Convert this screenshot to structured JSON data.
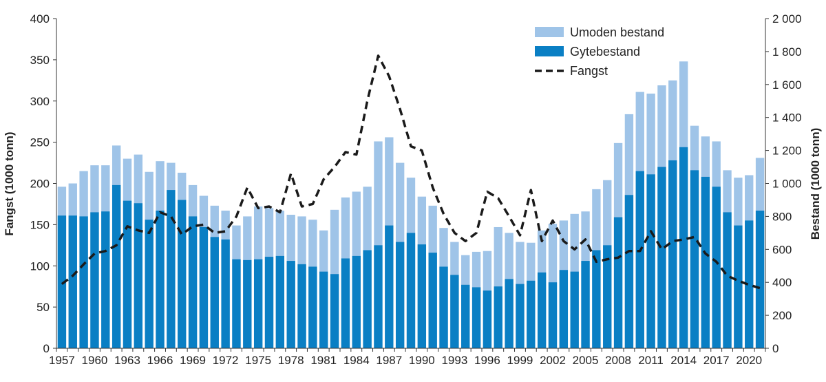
{
  "chart_data": {
    "type": "bar",
    "title": "",
    "xlabel": "",
    "ylabel_left": "Fangst (1000 tonn)",
    "ylabel_right": "Bestand (1000 tonn)",
    "ylim_left": [
      0,
      400
    ],
    "ylim_right": [
      0,
      2000
    ],
    "yticks_left": [
      "0",
      "50",
      "100",
      "150",
      "200",
      "250",
      "300",
      "350",
      "400"
    ],
    "yticks_right": [
      "0",
      "200",
      "400",
      "600",
      "800",
      "1 000",
      "1 200",
      "1 400",
      "1 600",
      "1 800",
      "2 000"
    ],
    "x": [
      1957,
      1958,
      1959,
      1960,
      1961,
      1962,
      1963,
      1964,
      1965,
      1966,
      1967,
      1968,
      1969,
      1970,
      1971,
      1972,
      1973,
      1974,
      1975,
      1976,
      1977,
      1978,
      1979,
      1980,
      1981,
      1982,
      1983,
      1984,
      1985,
      1986,
      1987,
      1988,
      1989,
      1990,
      1991,
      1992,
      1993,
      1994,
      1995,
      1996,
      1997,
      1998,
      1999,
      2000,
      2001,
      2002,
      2003,
      2004,
      2005,
      2006,
      2007,
      2008,
      2009,
      2010,
      2011,
      2012,
      2013,
      2014,
      2015,
      2016,
      2017,
      2018,
      2019,
      2020,
      2021
    ],
    "xtick_labels": [
      "1957",
      "1960",
      "1963",
      "1966",
      "1969",
      "1972",
      "1975",
      "1978",
      "1981",
      "1984",
      "1987",
      "1990",
      "1993",
      "1996",
      "1999",
      "2002",
      "2005",
      "2008",
      "2011",
      "2014",
      "2017",
      "2020"
    ],
    "legend_position": "top-right",
    "series": [
      {
        "name": "Gytebestand",
        "axis": "right",
        "kind": "bar",
        "color": "#0a7fc4",
        "values": [
          805,
          805,
          800,
          825,
          830,
          990,
          895,
          880,
          780,
          835,
          960,
          900,
          800,
          735,
          675,
          660,
          540,
          535,
          540,
          555,
          560,
          530,
          510,
          495,
          465,
          450,
          545,
          560,
          595,
          625,
          745,
          645,
          700,
          630,
          580,
          495,
          445,
          385,
          370,
          350,
          375,
          420,
          390,
          410,
          460,
          400,
          475,
          465,
          530,
          595,
          625,
          795,
          930,
          1075,
          1055,
          1100,
          1140,
          1220,
          1080,
          1040,
          980,
          825,
          745,
          775,
          835
        ]
      },
      {
        "name": "Umoden bestand",
        "axis": "right",
        "kind": "bar",
        "color": "#9fc4e8",
        "values": [
          980,
          1000,
          1075,
          1110,
          1110,
          1230,
          1150,
          1175,
          1070,
          1135,
          1125,
          1065,
          990,
          925,
          865,
          835,
          745,
          800,
          860,
          850,
          835,
          810,
          800,
          780,
          715,
          840,
          915,
          950,
          980,
          1255,
          1280,
          1125,
          1035,
          920,
          865,
          730,
          645,
          565,
          585,
          590,
          735,
          700,
          645,
          640,
          715,
          755,
          775,
          815,
          830,
          965,
          1020,
          1245,
          1420,
          1555,
          1545,
          1595,
          1625,
          1740,
          1350,
          1285,
          1255,
          1080,
          1035,
          1050,
          1155
        ]
      },
      {
        "name": "Fangst",
        "axis": "left",
        "kind": "line",
        "style": "dashed",
        "color": "#1a1a1a",
        "values": [
          78,
          88,
          102,
          115,
          118,
          125,
          148,
          143,
          140,
          165,
          160,
          138,
          148,
          150,
          140,
          142,
          160,
          195,
          170,
          172,
          165,
          212,
          172,
          175,
          205,
          220,
          238,
          235,
          300,
          355,
          330,
          290,
          245,
          240,
          195,
          163,
          140,
          130,
          140,
          190,
          182,
          160,
          137,
          192,
          130,
          155,
          130,
          120,
          132,
          105,
          108,
          110,
          118,
          118,
          142,
          120,
          130,
          132,
          135,
          115,
          105,
          88,
          82,
          77,
          73
        ]
      }
    ]
  }
}
